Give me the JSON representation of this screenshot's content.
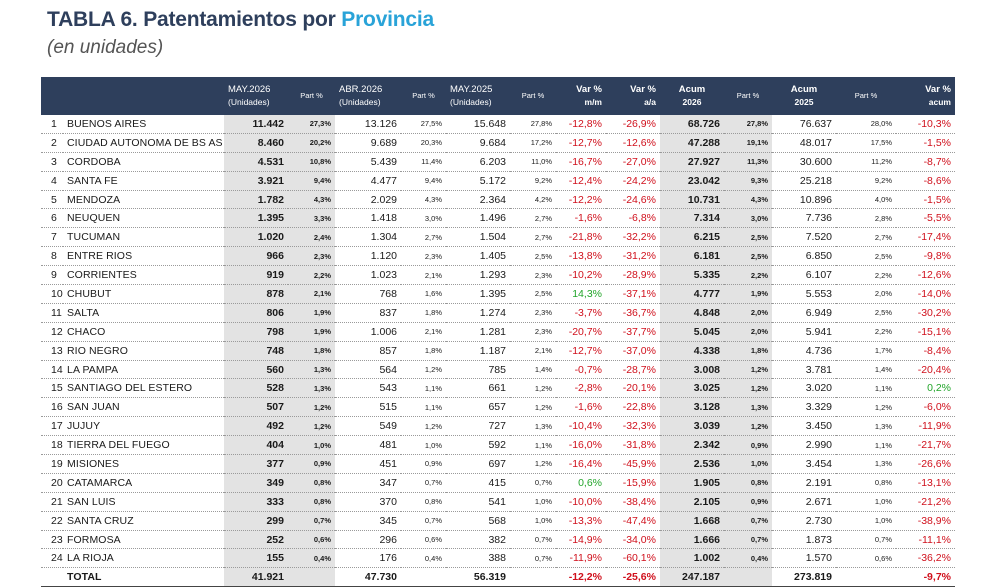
{
  "title_main": "TABLA 6. Patentamientos por",
  "title_accent": "Provincia",
  "subtitle": "(en unidades)",
  "headers": {
    "h1a": "MAY.2026",
    "h1b": "(Unidades)",
    "p1": "Part %",
    "h2a": "ABR.2026",
    "h2b": "(Unidades)",
    "p2": "Part %",
    "h3a": "MAY.2025",
    "h3b": "(Unidades)",
    "p3": "Part %",
    "vmm_a": "Var %",
    "vmm_b": "m/m",
    "vaa_a": "Var %",
    "vaa_b": "a/a",
    "ac26_a": "Acum",
    "ac26_b": "2026",
    "p4": "Part %",
    "ac25_a": "Acum",
    "ac25_b": "2025",
    "p5": "Part %",
    "vac_a": "Var %",
    "vac_b": "acum"
  },
  "rows": [
    {
      "n": "1",
      "prov": "BUENOS AIRES",
      "may26": "11.442",
      "p1": "27,3%",
      "abr26": "13.126",
      "p2": "27,5%",
      "may25": "15.648",
      "p3": "27,8%",
      "vmm": "-12,8%",
      "vaa": "-26,9%",
      "ac26": "68.726",
      "p4": "27,8%",
      "ac25": "76.637",
      "p5": "28,0%",
      "vac": "-10,3%"
    },
    {
      "n": "2",
      "prov": "CIUDAD AUTONOMA DE BS AS",
      "may26": "8.460",
      "p1": "20,2%",
      "abr26": "9.689",
      "p2": "20,3%",
      "may25": "9.684",
      "p3": "17,2%",
      "vmm": "-12,7%",
      "vaa": "-12,6%",
      "ac26": "47.288",
      "p4": "19,1%",
      "ac25": "48.017",
      "p5": "17,5%",
      "vac": "-1,5%"
    },
    {
      "n": "3",
      "prov": "CORDOBA",
      "may26": "4.531",
      "p1": "10,8%",
      "abr26": "5.439",
      "p2": "11,4%",
      "may25": "6.203",
      "p3": "11,0%",
      "vmm": "-16,7%",
      "vaa": "-27,0%",
      "ac26": "27.927",
      "p4": "11,3%",
      "ac25": "30.600",
      "p5": "11,2%",
      "vac": "-8,7%"
    },
    {
      "n": "4",
      "prov": "SANTA FE",
      "may26": "3.921",
      "p1": "9,4%",
      "abr26": "4.477",
      "p2": "9,4%",
      "may25": "5.172",
      "p3": "9,2%",
      "vmm": "-12,4%",
      "vaa": "-24,2%",
      "ac26": "23.042",
      "p4": "9,3%",
      "ac25": "25.218",
      "p5": "9,2%",
      "vac": "-8,6%"
    },
    {
      "n": "5",
      "prov": "MENDOZA",
      "may26": "1.782",
      "p1": "4,3%",
      "abr26": "2.029",
      "p2": "4,3%",
      "may25": "2.364",
      "p3": "4,2%",
      "vmm": "-12,2%",
      "vaa": "-24,6%",
      "ac26": "10.731",
      "p4": "4,3%",
      "ac25": "10.896",
      "p5": "4,0%",
      "vac": "-1,5%"
    },
    {
      "n": "6",
      "prov": "NEUQUEN",
      "may26": "1.395",
      "p1": "3,3%",
      "abr26": "1.418",
      "p2": "3,0%",
      "may25": "1.496",
      "p3": "2,7%",
      "vmm": "-1,6%",
      "vaa": "-6,8%",
      "ac26": "7.314",
      "p4": "3,0%",
      "ac25": "7.736",
      "p5": "2,8%",
      "vac": "-5,5%"
    },
    {
      "n": "7",
      "prov": "TUCUMAN",
      "may26": "1.020",
      "p1": "2,4%",
      "abr26": "1.304",
      "p2": "2,7%",
      "may25": "1.504",
      "p3": "2,7%",
      "vmm": "-21,8%",
      "vaa": "-32,2%",
      "ac26": "6.215",
      "p4": "2,5%",
      "ac25": "7.520",
      "p5": "2,7%",
      "vac": "-17,4%"
    },
    {
      "n": "8",
      "prov": "ENTRE RIOS",
      "may26": "966",
      "p1": "2,3%",
      "abr26": "1.120",
      "p2": "2,3%",
      "may25": "1.405",
      "p3": "2,5%",
      "vmm": "-13,8%",
      "vaa": "-31,2%",
      "ac26": "6.181",
      "p4": "2,5%",
      "ac25": "6.850",
      "p5": "2,5%",
      "vac": "-9,8%"
    },
    {
      "n": "9",
      "prov": "CORRIENTES",
      "may26": "919",
      "p1": "2,2%",
      "abr26": "1.023",
      "p2": "2,1%",
      "may25": "1.293",
      "p3": "2,3%",
      "vmm": "-10,2%",
      "vaa": "-28,9%",
      "ac26": "5.335",
      "p4": "2,2%",
      "ac25": "6.107",
      "p5": "2,2%",
      "vac": "-12,6%"
    },
    {
      "n": "10",
      "prov": "CHUBUT",
      "may26": "878",
      "p1": "2,1%",
      "abr26": "768",
      "p2": "1,6%",
      "may25": "1.395",
      "p3": "2,5%",
      "vmm": "14,3%",
      "vaa": "-37,1%",
      "ac26": "4.777",
      "p4": "1,9%",
      "ac25": "5.553",
      "p5": "2,0%",
      "vac": "-14,0%"
    },
    {
      "n": "11",
      "prov": "SALTA",
      "may26": "806",
      "p1": "1,9%",
      "abr26": "837",
      "p2": "1,8%",
      "may25": "1.274",
      "p3": "2,3%",
      "vmm": "-3,7%",
      "vaa": "-36,7%",
      "ac26": "4.848",
      "p4": "2,0%",
      "ac25": "6.949",
      "p5": "2,5%",
      "vac": "-30,2%"
    },
    {
      "n": "12",
      "prov": "CHACO",
      "may26": "798",
      "p1": "1,9%",
      "abr26": "1.006",
      "p2": "2,1%",
      "may25": "1.281",
      "p3": "2,3%",
      "vmm": "-20,7%",
      "vaa": "-37,7%",
      "ac26": "5.045",
      "p4": "2,0%",
      "ac25": "5.941",
      "p5": "2,2%",
      "vac": "-15,1%"
    },
    {
      "n": "13",
      "prov": "RIO NEGRO",
      "may26": "748",
      "p1": "1,8%",
      "abr26": "857",
      "p2": "1,8%",
      "may25": "1.187",
      "p3": "2,1%",
      "vmm": "-12,7%",
      "vaa": "-37,0%",
      "ac26": "4.338",
      "p4": "1,8%",
      "ac25": "4.736",
      "p5": "1,7%",
      "vac": "-8,4%"
    },
    {
      "n": "14",
      "prov": "LA PAMPA",
      "may26": "560",
      "p1": "1,3%",
      "abr26": "564",
      "p2": "1,2%",
      "may25": "785",
      "p3": "1,4%",
      "vmm": "-0,7%",
      "vaa": "-28,7%",
      "ac26": "3.008",
      "p4": "1,2%",
      "ac25": "3.781",
      "p5": "1,4%",
      "vac": "-20,4%"
    },
    {
      "n": "15",
      "prov": "SANTIAGO DEL ESTERO",
      "may26": "528",
      "p1": "1,3%",
      "abr26": "543",
      "p2": "1,1%",
      "may25": "661",
      "p3": "1,2%",
      "vmm": "-2,8%",
      "vaa": "-20,1%",
      "ac26": "3.025",
      "p4": "1,2%",
      "ac25": "3.020",
      "p5": "1,1%",
      "vac": "0,2%"
    },
    {
      "n": "16",
      "prov": "SAN JUAN",
      "may26": "507",
      "p1": "1,2%",
      "abr26": "515",
      "p2": "1,1%",
      "may25": "657",
      "p3": "1,2%",
      "vmm": "-1,6%",
      "vaa": "-22,8%",
      "ac26": "3.128",
      "p4": "1,3%",
      "ac25": "3.329",
      "p5": "1,2%",
      "vac": "-6,0%"
    },
    {
      "n": "17",
      "prov": "JUJUY",
      "may26": "492",
      "p1": "1,2%",
      "abr26": "549",
      "p2": "1,2%",
      "may25": "727",
      "p3": "1,3%",
      "vmm": "-10,4%",
      "vaa": "-32,3%",
      "ac26": "3.039",
      "p4": "1,2%",
      "ac25": "3.450",
      "p5": "1,3%",
      "vac": "-11,9%"
    },
    {
      "n": "18",
      "prov": "TIERRA DEL FUEGO",
      "may26": "404",
      "p1": "1,0%",
      "abr26": "481",
      "p2": "1,0%",
      "may25": "592",
      "p3": "1,1%",
      "vmm": "-16,0%",
      "vaa": "-31,8%",
      "ac26": "2.342",
      "p4": "0,9%",
      "ac25": "2.990",
      "p5": "1,1%",
      "vac": "-21,7%"
    },
    {
      "n": "19",
      "prov": "MISIONES",
      "may26": "377",
      "p1": "0,9%",
      "abr26": "451",
      "p2": "0,9%",
      "may25": "697",
      "p3": "1,2%",
      "vmm": "-16,4%",
      "vaa": "-45,9%",
      "ac26": "2.536",
      "p4": "1,0%",
      "ac25": "3.454",
      "p5": "1,3%",
      "vac": "-26,6%"
    },
    {
      "n": "20",
      "prov": "CATAMARCA",
      "may26": "349",
      "p1": "0,8%",
      "abr26": "347",
      "p2": "0,7%",
      "may25": "415",
      "p3": "0,7%",
      "vmm": "0,6%",
      "vaa": "-15,9%",
      "ac26": "1.905",
      "p4": "0,8%",
      "ac25": "2.191",
      "p5": "0,8%",
      "vac": "-13,1%"
    },
    {
      "n": "21",
      "prov": "SAN LUIS",
      "may26": "333",
      "p1": "0,8%",
      "abr26": "370",
      "p2": "0,8%",
      "may25": "541",
      "p3": "1,0%",
      "vmm": "-10,0%",
      "vaa": "-38,4%",
      "ac26": "2.105",
      "p4": "0,9%",
      "ac25": "2.671",
      "p5": "1,0%",
      "vac": "-21,2%"
    },
    {
      "n": "22",
      "prov": "SANTA CRUZ",
      "may26": "299",
      "p1": "0,7%",
      "abr26": "345",
      "p2": "0,7%",
      "may25": "568",
      "p3": "1,0%",
      "vmm": "-13,3%",
      "vaa": "-47,4%",
      "ac26": "1.668",
      "p4": "0,7%",
      "ac25": "2.730",
      "p5": "1,0%",
      "vac": "-38,9%"
    },
    {
      "n": "23",
      "prov": "FORMOSA",
      "may26": "252",
      "p1": "0,6%",
      "abr26": "296",
      "p2": "0,6%",
      "may25": "382",
      "p3": "0,7%",
      "vmm": "-14,9%",
      "vaa": "-34,0%",
      "ac26": "1.666",
      "p4": "0,7%",
      "ac25": "1.873",
      "p5": "0,7%",
      "vac": "-11,1%"
    },
    {
      "n": "24",
      "prov": "LA RIOJA",
      "may26": "155",
      "p1": "0,4%",
      "abr26": "176",
      "p2": "0,4%",
      "may25": "388",
      "p3": "0,7%",
      "vmm": "-11,9%",
      "vaa": "-60,1%",
      "ac26": "1.002",
      "p4": "0,4%",
      "ac25": "1.570",
      "p5": "0,6%",
      "vac": "-36,2%"
    }
  ],
  "total": {
    "label": "TOTAL",
    "may26": "41.921",
    "abr26": "47.730",
    "may25": "56.319",
    "vmm": "-12,2%",
    "vaa": "-25,6%",
    "ac26": "247.187",
    "ac25": "273.819",
    "vac": "-9,7%"
  }
}
